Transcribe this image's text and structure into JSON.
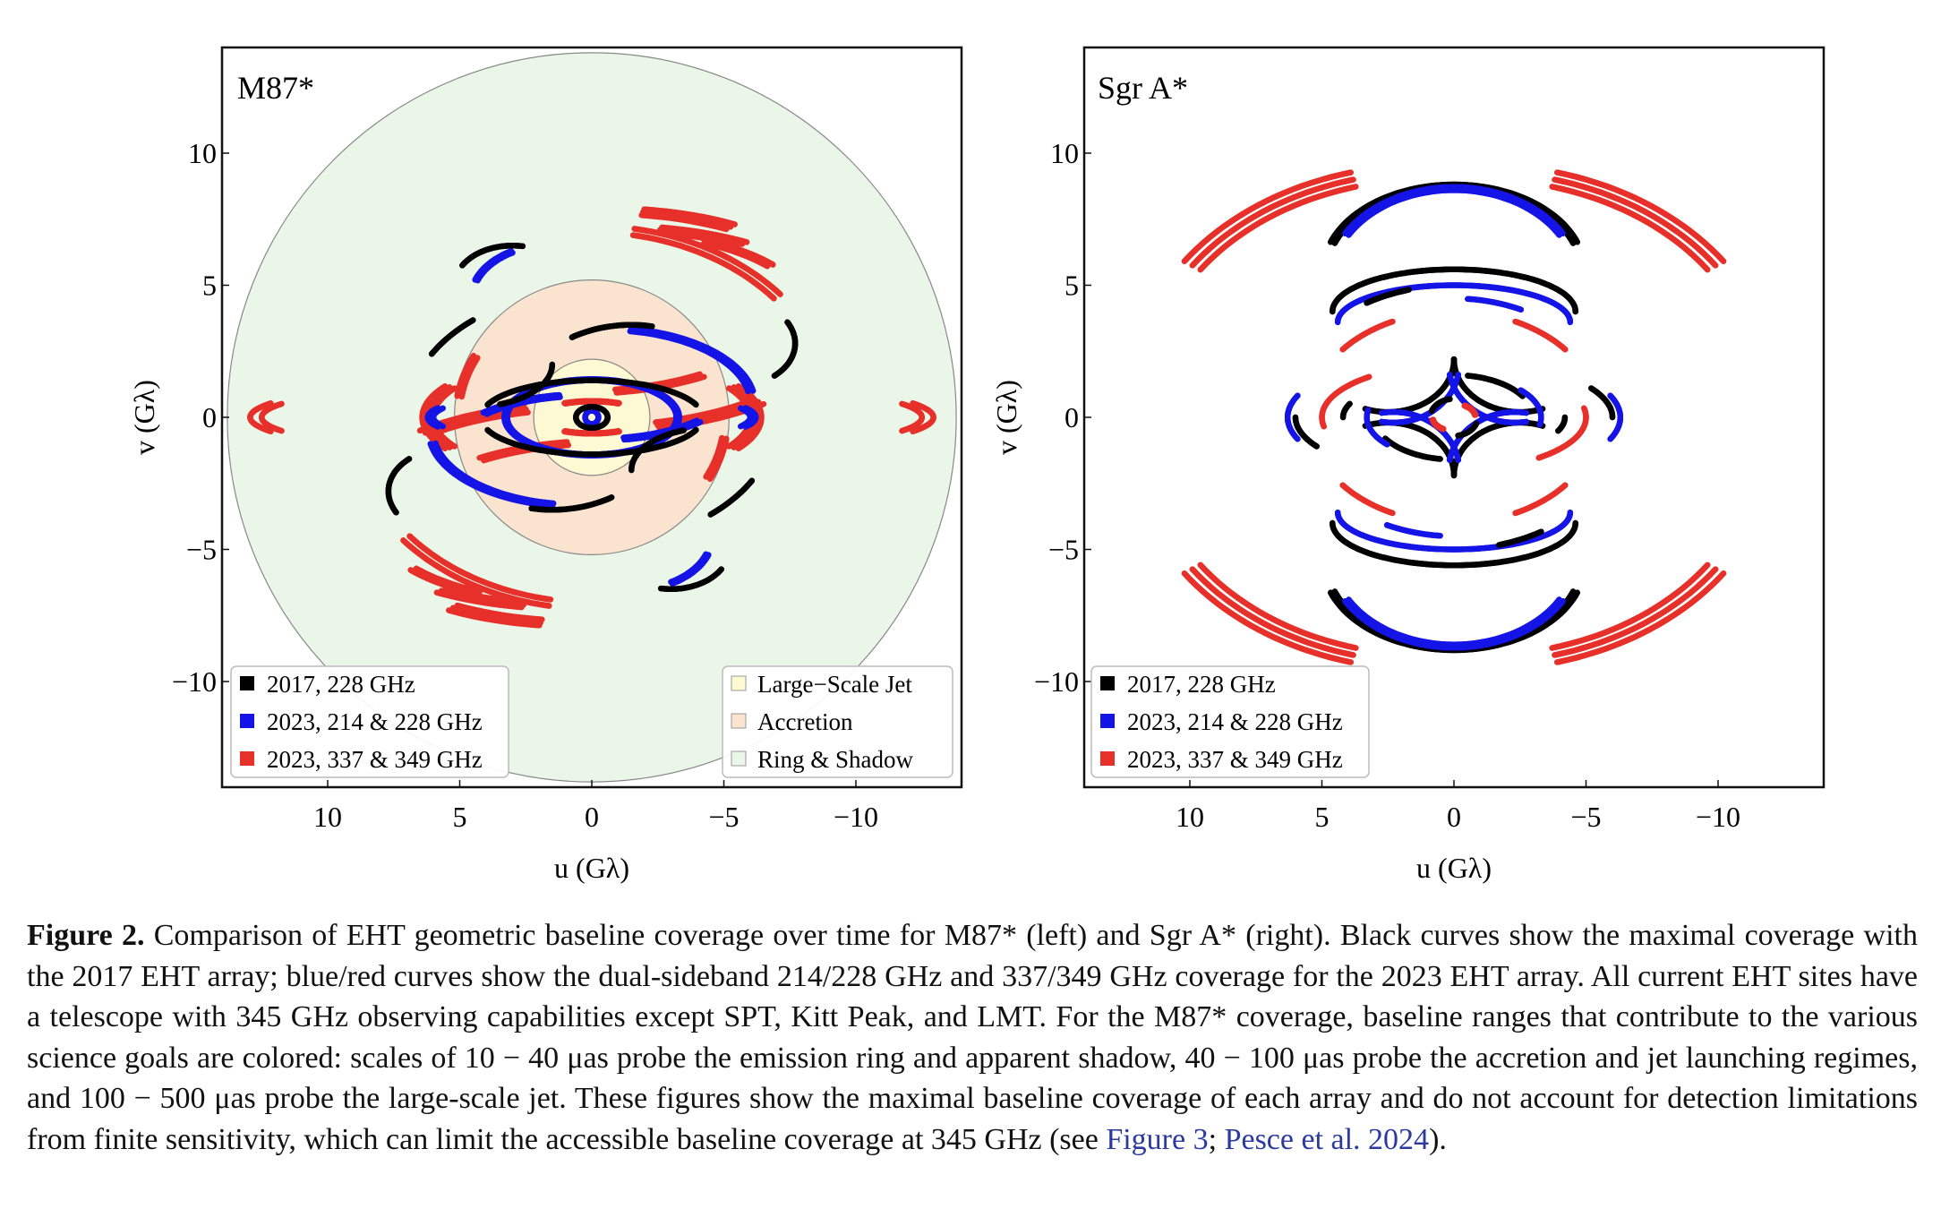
{
  "figure": {
    "left_panel": {
      "title": "M87*",
      "xlabel": "u (Gλ)",
      "ylabel": "v (Gλ)",
      "xticks": [
        10,
        5,
        0,
        -5,
        -10
      ],
      "yticks": [
        10,
        5,
        0,
        -5,
        -10
      ],
      "legend": [
        "2017, 228 GHz",
        "2023, 214 & 228 GHz",
        "2023, 337 & 349 GHz"
      ],
      "regions_legend": [
        "Large−Scale Jet",
        "Accretion",
        "Ring & Shadow"
      ]
    },
    "right_panel": {
      "title": "Sgr A*",
      "xlabel": "u (Gλ)",
      "ylabel": "v (Gλ)",
      "xticks": [
        10,
        5,
        0,
        -5,
        -10
      ],
      "yticks": [
        10,
        5,
        0,
        -5,
        -10
      ],
      "legend": [
        "2017, 228 GHz",
        "2023, 214 & 228 GHz",
        "2023, 337 & 349 GHz"
      ]
    }
  },
  "chart_data": [
    {
      "type": "scatter",
      "title": "M87*",
      "xlabel": "u (Gλ)",
      "ylabel": "v (Gλ)",
      "xlim": [
        14,
        -14
      ],
      "ylim": [
        -14,
        14
      ],
      "legend": [
        "2017, 228 GHz",
        "2023, 214 & 228 GHz",
        "2023, 337 & 349 GHz"
      ],
      "legend_position": "bottom-left",
      "regions": [
        {
          "name": "Large−Scale Jet",
          "radius_max": 2.2,
          "color": "#fdf9d3"
        },
        {
          "name": "Accretion",
          "radius_min": 2.2,
          "radius_max": 5.2,
          "color": "#fbe4cf"
        },
        {
          "name": "Ring & Shadow",
          "radius_min": 5.2,
          "radius_max": 13.8,
          "color": "#eaf7e8"
        }
      ],
      "regions_legend_position": "bottom-right",
      "colors": {
        "2017": "#000000",
        "2023_228": "#1414e6",
        "2023_345": "#e8302a"
      },
      "tracks_format": "[series, cx, cy, radius_x, radius_y, start_deg, end_deg, lane_count]",
      "tracks": [
        [
          "2023_345",
          0.3,
          -3.0,
          8.2,
          3.3,
          45,
          75,
          3
        ],
        [
          "2023_345",
          -0.5,
          4.5,
          8.0,
          3.2,
          100,
          125,
          3
        ],
        [
          "2023_345",
          -0.5,
          4.5,
          7.8,
          2.6,
          105,
          130,
          3
        ],
        [
          "2023_345",
          -0.5,
          4.0,
          7.5,
          3.0,
          120,
          145,
          2
        ],
        [
          "2023_345",
          0.5,
          4.5,
          8.0,
          3.5,
          235,
          260,
          2
        ],
        [
          "2023_345",
          0.5,
          -4.5,
          8.0,
          3.2,
          280,
          305,
          3
        ],
        [
          "2023_345",
          0.5,
          -4.5,
          7.8,
          2.6,
          285,
          310,
          3
        ],
        [
          "2023_345",
          0.5,
          -4.0,
          7.5,
          3.0,
          300,
          325,
          2
        ],
        [
          "2023_345",
          -0.3,
          3.0,
          8.2,
          3.3,
          225,
          255,
          3
        ],
        [
          "2023_345",
          0.0,
          0.0,
          6.0,
          2.2,
          150,
          210,
          3
        ],
        [
          "2023_345",
          0.0,
          0.0,
          6.0,
          2.2,
          330,
          390,
          3
        ],
        [
          "2023_345",
          0.0,
          0.0,
          12.5,
          1.5,
          160,
          200,
          2
        ],
        [
          "2023_345",
          0.0,
          0.0,
          12.5,
          1.5,
          340,
          380,
          2
        ],
        [
          "2023_345",
          0.0,
          0.0,
          5.0,
          4.5,
          10,
          30,
          2
        ],
        [
          "2023_345",
          0.0,
          0.0,
          5.0,
          4.5,
          190,
          210,
          2
        ],
        [
          "2023_345",
          0.0,
          0.0,
          2.0,
          0.6,
          60,
          120,
          2
        ],
        [
          "2023_345",
          0.0,
          0.0,
          2.0,
          0.6,
          240,
          300,
          2
        ],
        [
          "2023_345",
          0.0,
          0.0,
          9.0,
          7.0,
          100,
          140,
          2
        ],
        [
          "2023_345",
          0.0,
          0.0,
          9.0,
          7.0,
          280,
          320,
          2
        ],
        [
          "2023_228",
          0.3,
          -1.5,
          5.2,
          2.3,
          45,
          80,
          2
        ],
        [
          "2023_228",
          -0.3,
          1.5,
          5.2,
          2.3,
          225,
          260,
          2
        ],
        [
          "2023_228",
          0.0,
          0.0,
          6.0,
          1.0,
          160,
          200,
          2
        ],
        [
          "2023_228",
          0.0,
          0.0,
          6.0,
          1.0,
          340,
          380,
          2
        ],
        [
          "2023_228",
          -0.5,
          0.5,
          5.5,
          2.8,
          100,
          170,
          2
        ],
        [
          "2023_228",
          0.5,
          -0.5,
          5.5,
          2.8,
          280,
          350,
          2
        ],
        [
          "2023_228",
          0.0,
          0.0,
          3.2,
          1.4,
          0,
          180,
          2
        ],
        [
          "2023_228",
          0.0,
          0.0,
          3.2,
          1.4,
          180,
          360,
          1
        ],
        [
          "2023_228",
          1.5,
          4.5,
          3.0,
          2.0,
          20,
          60,
          2
        ],
        [
          "2023_228",
          -1.5,
          -4.5,
          3.0,
          2.0,
          200,
          240,
          2
        ],
        [
          "2023_228",
          0.0,
          0.0,
          0.25,
          0.25,
          0,
          360,
          1
        ],
        [
          "2017",
          0.0,
          0.0,
          4.2,
          1.4,
          20,
          160,
          1
        ],
        [
          "2017",
          0.0,
          0.0,
          4.2,
          1.4,
          200,
          340,
          1
        ],
        [
          "2017",
          -1.5,
          0.0,
          4.5,
          3.5,
          60,
          100,
          1
        ],
        [
          "2017",
          1.5,
          0.0,
          4.5,
          3.5,
          240,
          280,
          1
        ],
        [
          "2017",
          3.0,
          5.0,
          2.2,
          1.5,
          30,
          100,
          1
        ],
        [
          "2017",
          -3.0,
          -5.0,
          2.2,
          1.5,
          210,
          280,
          1
        ],
        [
          "2017",
          4.5,
          2.0,
          3.0,
          1.6,
          180,
          250,
          1
        ],
        [
          "2017",
          -4.5,
          -2.0,
          3.0,
          1.6,
          0,
          70,
          1
        ],
        [
          "2017",
          -5.5,
          2.8,
          2.2,
          1.6,
          150,
          230,
          1
        ],
        [
          "2017",
          5.5,
          -2.8,
          2.2,
          1.6,
          330,
          410,
          1
        ],
        [
          "2017",
          0.0,
          0.0,
          7.0,
          4.8,
          30,
          50,
          1
        ],
        [
          "2017",
          0.0,
          0.0,
          7.0,
          4.8,
          210,
          230,
          1
        ],
        [
          "2017",
          0.0,
          0.0,
          0.6,
          0.4,
          0,
          360,
          1
        ]
      ]
    },
    {
      "type": "scatter",
      "title": "Sgr A*",
      "xlabel": "u (Gλ)",
      "ylabel": "v (Gλ)",
      "xlim": [
        14,
        -14
      ],
      "ylim": [
        -14,
        14
      ],
      "legend": [
        "2017, 228 GHz",
        "2023, 214 & 228 GHz",
        "2023, 337 & 349 GHz"
      ],
      "legend_position": "bottom-left",
      "colors": {
        "2017": "#000000",
        "2023_228": "#1414e6",
        "2023_345": "#e8302a"
      },
      "tracks_format": "[series, cx, cy, radius_x, radius_y, start_deg, end_deg, lane_count]",
      "tracks": [
        [
          "2017",
          0.0,
          5.5,
          4.8,
          3.2,
          20,
          160,
          2
        ],
        [
          "2017",
          0.0,
          -5.5,
          4.8,
          3.2,
          200,
          340,
          2
        ],
        [
          "2023_228",
          0.0,
          5.2,
          4.6,
          3.4,
          30,
          150,
          2
        ],
        [
          "2023_228",
          0.0,
          -5.2,
          4.6,
          3.4,
          210,
          330,
          2
        ],
        [
          "2017",
          0.0,
          4.0,
          4.6,
          1.6,
          0,
          180,
          1
        ],
        [
          "2017",
          0.0,
          -4.0,
          4.6,
          1.6,
          180,
          360,
          1
        ],
        [
          "2023_228",
          0.0,
          3.6,
          4.4,
          1.4,
          0,
          180,
          1
        ],
        [
          "2023_228",
          0.0,
          -3.6,
          4.4,
          1.4,
          180,
          360,
          1
        ],
        [
          "2017",
          2.5,
          2.2,
          2.5,
          2.0,
          180,
          290,
          1
        ],
        [
          "2017",
          -2.5,
          -2.2,
          2.5,
          2.0,
          0,
          110,
          1
        ],
        [
          "2017",
          -2.5,
          2.2,
          2.5,
          2.0,
          250,
          360,
          1
        ],
        [
          "2017",
          2.5,
          -2.2,
          2.5,
          2.0,
          70,
          180,
          1
        ],
        [
          "2023_228",
          2.3,
          2.0,
          2.5,
          2.2,
          190,
          280,
          1
        ],
        [
          "2023_228",
          -2.3,
          -2.0,
          2.5,
          2.2,
          10,
          100,
          1
        ],
        [
          "2023_228",
          -2.3,
          2.0,
          2.5,
          2.2,
          260,
          350,
          1
        ],
        [
          "2023_228",
          2.3,
          -2.0,
          2.5,
          2.2,
          80,
          170,
          1
        ],
        [
          "2017",
          0.0,
          0.0,
          4.2,
          1.5,
          180,
          200,
          1
        ],
        [
          "2017",
          0.0,
          0.0,
          4.2,
          1.5,
          0,
          20,
          1
        ],
        [
          "2017",
          0.0,
          0.0,
          3.0,
          1.6,
          100,
          150,
          1
        ],
        [
          "2017",
          0.0,
          0.0,
          3.0,
          1.6,
          280,
          330,
          1
        ],
        [
          "2023_228",
          0.0,
          0.0,
          3.3,
          1.6,
          140,
          190,
          1
        ],
        [
          "2023_228",
          0.0,
          0.0,
          3.3,
          1.6,
          320,
          370,
          1
        ],
        [
          "2017",
          0.0,
          0.0,
          6.0,
          2.2,
          150,
          180,
          1
        ],
        [
          "2017",
          0.0,
          0.0,
          6.0,
          2.2,
          330,
          360,
          1
        ],
        [
          "2023_228",
          0.0,
          0.0,
          6.3,
          2.4,
          160,
          200,
          1
        ],
        [
          "2023_228",
          0.0,
          0.0,
          6.3,
          2.4,
          340,
          380,
          1
        ],
        [
          "2023_345",
          0.0,
          0.0,
          5.0,
          2.0,
          170,
          230,
          1
        ],
        [
          "2023_345",
          0.0,
          0.0,
          5.0,
          2.0,
          350,
          410,
          1
        ],
        [
          "2023_345",
          0.0,
          0.0,
          0.8,
          0.5,
          120,
          170,
          2
        ],
        [
          "2023_345",
          0.0,
          0.0,
          0.8,
          0.5,
          300,
          350,
          2
        ],
        [
          "2017",
          0.0,
          0.0,
          0.9,
          0.7,
          20,
          80,
          1
        ],
        [
          "2017",
          0.0,
          0.0,
          0.9,
          0.7,
          200,
          260,
          1
        ],
        [
          "2023_345",
          -1.0,
          1.0,
          10.5,
          8.0,
          105,
          145,
          3
        ],
        [
          "2023_345",
          1.0,
          -1.0,
          10.5,
          8.0,
          285,
          325,
          3
        ],
        [
          "2023_345",
          1.0,
          1.0,
          10.5,
          8.0,
          35,
          75,
          3
        ],
        [
          "2023_345",
          -1.0,
          -1.0,
          10.5,
          8.0,
          215,
          255,
          3
        ],
        [
          "2023_345",
          0.0,
          0.0,
          5.5,
          4.0,
          40,
          65,
          1
        ],
        [
          "2023_345",
          0.0,
          0.0,
          5.5,
          4.0,
          220,
          245,
          1
        ],
        [
          "2023_345",
          0.0,
          0.0,
          5.5,
          4.0,
          115,
          140,
          1
        ],
        [
          "2023_345",
          0.0,
          0.0,
          5.5,
          4.0,
          295,
          320,
          1
        ],
        [
          "2023_228",
          0.0,
          0.0,
          6.0,
          4.5,
          95,
          115,
          1
        ],
        [
          "2023_228",
          0.0,
          0.0,
          6.0,
          4.5,
          275,
          295,
          1
        ],
        [
          "2017",
          0.0,
          0.0,
          6.6,
          5.0,
          60,
          75,
          1
        ],
        [
          "2017",
          0.0,
          0.0,
          6.6,
          5.0,
          240,
          255,
          1
        ]
      ]
    }
  ],
  "caption": {
    "label": "Figure 2.",
    "text_1": " Comparison of EHT geometric baseline coverage over time for M87* (left) and Sgr A* (right). Black curves show the maximal coverage with the 2017 EHT array; blue/red curves show the dual-sideband 214/228 GHz and 337/349 GHz coverage for the 2023 EHT array. All current EHT sites have a telescope with 345 GHz observing capabilities except SPT, Kitt Peak, and LMT. For the M87* coverage, baseline ranges that contribute to the various science goals are colored: scales of 10 − 40 μas probe the emission ring and apparent shadow, 40 − 100 μas probe the accretion and jet launching regimes, and 100 − 500 μas probe the large-scale jet. These figures show the maximal baseline coverage of each array and do not account for detection limitations from finite sensitivity, which can limit the accessible baseline coverage at 345 GHz (see ",
    "link_1": "Figure 3",
    "text_2": ";  ",
    "link_2": "Pesce et al. 2024",
    "text_3": ")."
  }
}
